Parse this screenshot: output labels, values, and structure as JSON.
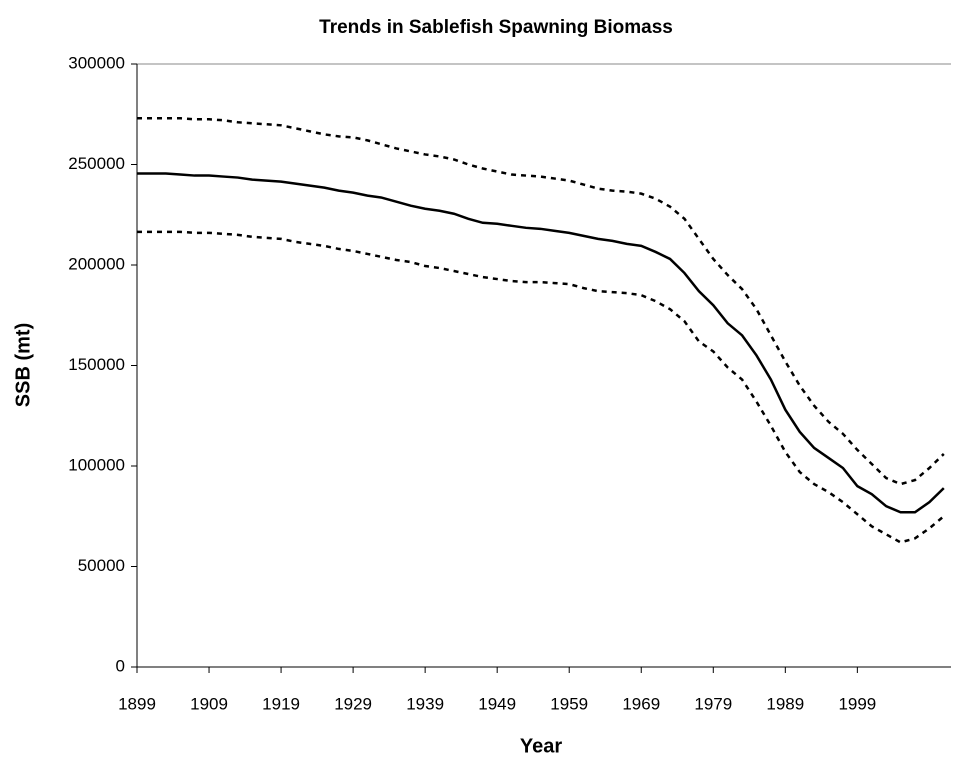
{
  "chart_data": {
    "type": "line",
    "title": "Trends in Sablefish Spawning Biomass",
    "x_label": "Year",
    "y_label": "SSB (mt)",
    "x": [
      1899,
      1901,
      1903,
      1905,
      1907,
      1909,
      1911,
      1913,
      1915,
      1917,
      1919,
      1921,
      1923,
      1925,
      1927,
      1929,
      1931,
      1933,
      1935,
      1937,
      1939,
      1941,
      1943,
      1945,
      1947,
      1949,
      1951,
      1953,
      1955,
      1957,
      1959,
      1961,
      1963,
      1965,
      1967,
      1969,
      1971,
      1973,
      1975,
      1977,
      1979,
      1981,
      1983,
      1985,
      1987,
      1989,
      1991,
      1993,
      1995,
      1997,
      1999,
      2001,
      2003,
      2005,
      2007,
      2009,
      2011
    ],
    "series": [
      {
        "color": "#000000",
        "dashed": false,
        "values": [
          245500,
          245500,
          245500,
          245000,
          244500,
          244500,
          244000,
          243500,
          242500,
          242000,
          241500,
          240500,
          239500,
          238500,
          237000,
          236000,
          234500,
          233500,
          231500,
          229500,
          228000,
          227000,
          225500,
          223000,
          221000,
          220500,
          219500,
          218500,
          218000,
          217000,
          216000,
          214500,
          213000,
          212000,
          210500,
          209500,
          206500,
          203000,
          196000,
          187000,
          180000,
          171000,
          165000,
          155000,
          143000,
          128000,
          117000,
          109000,
          104000,
          99000,
          90000,
          86000,
          80000,
          77000,
          77000,
          82000,
          89000
        ]
      },
      {
        "color": "#000000",
        "dashed": true,
        "values": [
          273000,
          273000,
          273000,
          273000,
          272500,
          272500,
          272000,
          271000,
          270500,
          270000,
          269500,
          268000,
          266500,
          265000,
          264000,
          263500,
          262000,
          260000,
          258000,
          256500,
          255000,
          254000,
          252500,
          250000,
          248000,
          246500,
          245000,
          244500,
          244000,
          243000,
          242000,
          240000,
          238000,
          237000,
          236500,
          235500,
          233000,
          229000,
          223000,
          213000,
          203000,
          195000,
          188000,
          178000,
          165000,
          152000,
          140000,
          130000,
          122000,
          116000,
          108000,
          101000,
          94000,
          91000,
          93000,
          99000,
          106000
        ]
      },
      {
        "color": "#000000",
        "dashed": true,
        "values": [
          216500,
          216500,
          216500,
          216500,
          216000,
          216000,
          215500,
          215000,
          214000,
          213500,
          213000,
          211500,
          210500,
          209500,
          208000,
          207000,
          205500,
          204000,
          202500,
          201500,
          199500,
          198500,
          197000,
          195500,
          194000,
          193000,
          192000,
          191500,
          191500,
          191000,
          190500,
          188500,
          187000,
          186500,
          186000,
          185000,
          182000,
          178000,
          172000,
          162000,
          157000,
          149000,
          143000,
          132000,
          120000,
          107000,
          97000,
          91000,
          87000,
          82000,
          76000,
          70000,
          66000,
          62000,
          64000,
          69000,
          75000
        ]
      }
    ],
    "xlim": [
      1899,
      2012
    ],
    "xticks": [
      1899,
      1909,
      1919,
      1929,
      1939,
      1949,
      1959,
      1969,
      1979,
      1989,
      1999
    ],
    "ylim": [
      0,
      300000
    ],
    "yticks": [
      0,
      50000,
      100000,
      150000,
      200000,
      250000,
      300000
    ],
    "grid": false
  }
}
